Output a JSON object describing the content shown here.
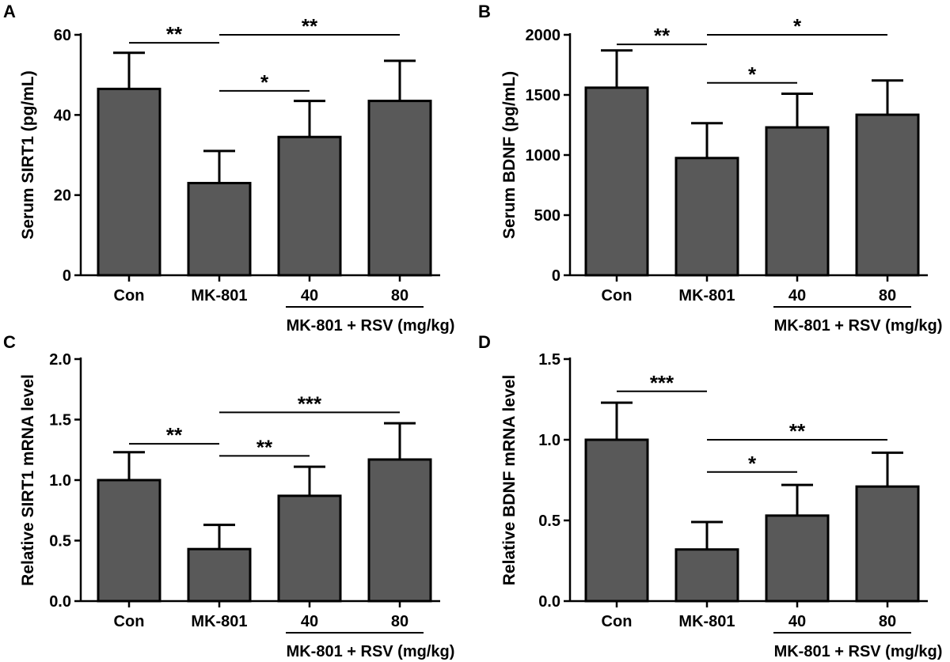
{
  "chart_data": [
    {
      "panel": "A",
      "type": "bar",
      "categories": [
        "Con",
        "MK-801",
        "40",
        "80"
      ],
      "values": [
        46.5,
        23,
        34.5,
        43.5
      ],
      "errors": [
        9,
        8,
        9,
        10
      ],
      "ylabel": "Serum SIRT1 (pg/mL)",
      "ylim": [
        0,
        60
      ],
      "yticks": [
        0,
        20,
        40,
        60
      ],
      "group_label": "MK-801 + RSV (mg/kg)",
      "significance": [
        {
          "from": 0,
          "to": 1,
          "label": "**",
          "level": 58
        },
        {
          "from": 1,
          "to": 3,
          "label": "**",
          "level": 60
        },
        {
          "from": 1,
          "to": 2,
          "label": "*",
          "level": 46
        }
      ]
    },
    {
      "panel": "B",
      "type": "bar",
      "categories": [
        "Con",
        "MK-801",
        "40",
        "80"
      ],
      "values": [
        1560,
        975,
        1230,
        1335
      ],
      "errors": [
        310,
        290,
        280,
        285
      ],
      "ylabel": "Serum BDNF (pg/mL)",
      "ylim": [
        0,
        2000
      ],
      "yticks": [
        0,
        500,
        1000,
        1500,
        2000
      ],
      "group_label": "MK-801 + RSV (mg/kg)",
      "significance": [
        {
          "from": 0,
          "to": 1,
          "label": "**",
          "level": 1920
        },
        {
          "from": 1,
          "to": 3,
          "label": "*",
          "level": 2000
        },
        {
          "from": 1,
          "to": 2,
          "label": "*",
          "level": 1600
        }
      ]
    },
    {
      "panel": "C",
      "type": "bar",
      "categories": [
        "Con",
        "MK-801",
        "40",
        "80"
      ],
      "values": [
        1.0,
        0.43,
        0.87,
        1.17
      ],
      "errors": [
        0.23,
        0.2,
        0.24,
        0.3
      ],
      "ylabel": "Relative SIRT1 mRNA level",
      "ylim": [
        0,
        2.0
      ],
      "yticks": [
        0.0,
        0.5,
        1.0,
        1.5,
        2.0
      ],
      "tick_decimals": 1,
      "group_label": "MK-801 + RSV (mg/kg)",
      "significance": [
        {
          "from": 0,
          "to": 1,
          "label": "**",
          "level": 1.3
        },
        {
          "from": 1,
          "to": 3,
          "label": "***",
          "level": 1.56
        },
        {
          "from": 1,
          "to": 2,
          "label": "**",
          "level": 1.2
        }
      ]
    },
    {
      "panel": "D",
      "type": "bar",
      "categories": [
        "Con",
        "MK-801",
        "40",
        "80"
      ],
      "values": [
        1.0,
        0.32,
        0.53,
        0.71
      ],
      "errors": [
        0.23,
        0.17,
        0.19,
        0.21
      ],
      "ylabel": "Relative BDNF mRNA level",
      "ylim": [
        0,
        1.5
      ],
      "yticks": [
        0.0,
        0.5,
        1.0,
        1.5
      ],
      "tick_decimals": 1,
      "group_label": "MK-801 + RSV (mg/kg)",
      "significance": [
        {
          "from": 0,
          "to": 1,
          "label": "***",
          "level": 1.3
        },
        {
          "from": 1,
          "to": 3,
          "label": "**",
          "level": 1.0
        },
        {
          "from": 1,
          "to": 2,
          "label": "*",
          "level": 0.8
        }
      ]
    }
  ]
}
